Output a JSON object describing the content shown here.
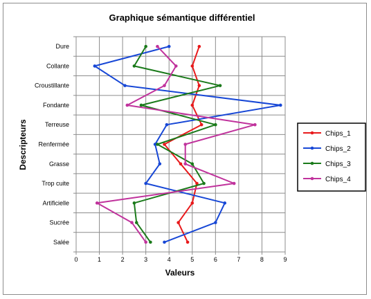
{
  "chart_data": {
    "type": "line",
    "orientation": "horizontal-profile",
    "title": "Graphique sémantique différentiel",
    "xlabel": "Valeurs",
    "ylabel": "Descripteurs",
    "xlim": [
      0,
      9
    ],
    "xticks": [
      0,
      1,
      2,
      3,
      4,
      5,
      6,
      7,
      8,
      9
    ],
    "grid": true,
    "legend_position": "right",
    "categories": [
      "Dure",
      "Collante",
      "Croustillante",
      "Fondante",
      "Terreuse",
      "Renfermée",
      "Grasse",
      "Trop cuite",
      "Artificielle",
      "Sucrée",
      "Salée"
    ],
    "series": [
      {
        "name": "Chips_1",
        "color": "#e8191b",
        "values": [
          5.3,
          5.0,
          5.3,
          5.0,
          5.4,
          3.8,
          4.5,
          5.2,
          5.0,
          4.4,
          4.8
        ]
      },
      {
        "name": "Chips_2",
        "color": "#1747d6",
        "values": [
          4.0,
          0.8,
          2.1,
          8.8,
          3.9,
          3.4,
          3.6,
          3.0,
          6.4,
          6.0,
          3.8
        ]
      },
      {
        "name": "Chips_3",
        "color": "#1a7a1a",
        "values": [
          3.0,
          2.5,
          6.2,
          2.8,
          6.0,
          3.5,
          5.0,
          5.5,
          2.5,
          2.6,
          3.2
        ]
      },
      {
        "name": "Chips_4",
        "color": "#c0329c",
        "values": [
          3.5,
          4.3,
          3.8,
          2.2,
          7.7,
          4.7,
          4.7,
          6.8,
          0.9,
          2.4,
          3.0
        ]
      }
    ]
  }
}
